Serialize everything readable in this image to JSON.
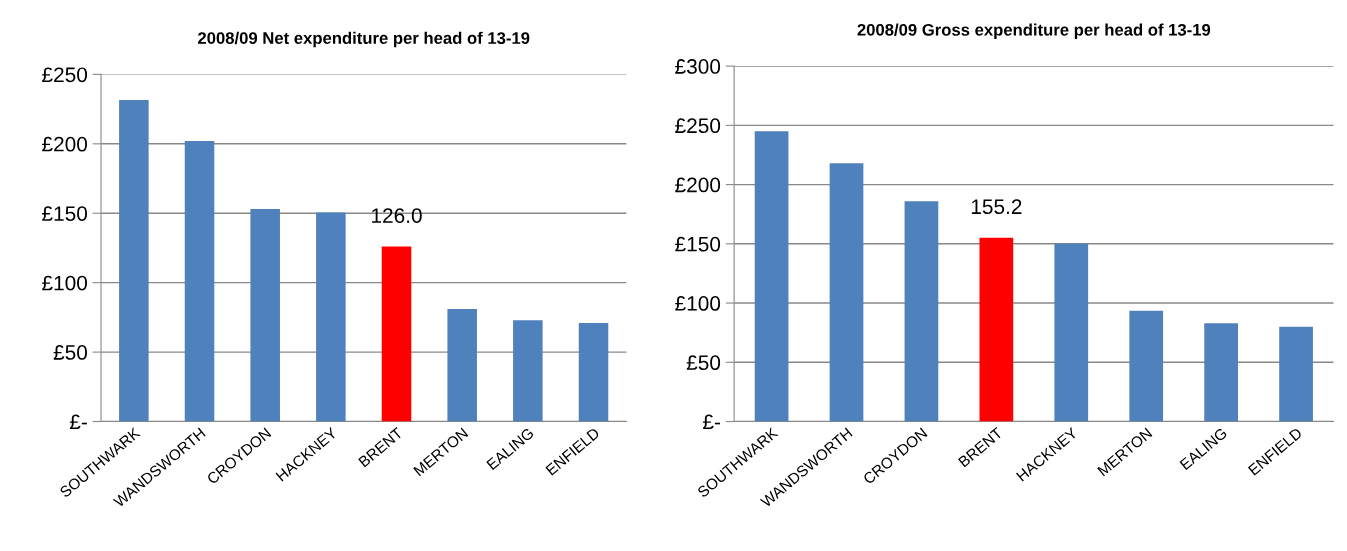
{
  "chart_data": [
    {
      "type": "bar",
      "title": "2008/09 Net expenditure per head of 13-19",
      "categories": [
        "SOUTHWARK",
        "WANDSWORTH",
        "CROYDON",
        "HACKNEY",
        "BRENT",
        "MERTON",
        "EALING",
        "ENFIELD"
      ],
      "values": [
        231.5,
        202,
        153,
        150.5,
        126.0,
        81,
        73,
        71
      ],
      "colors": [
        "#4f81bd",
        "#4f81bd",
        "#4f81bd",
        "#4f81bd",
        "#ff0000",
        "#4f81bd",
        "#4f81bd",
        "#4f81bd"
      ],
      "value_labels": [
        null,
        null,
        null,
        null,
        "126.0",
        null,
        null,
        null
      ],
      "ylim": [
        0,
        250
      ],
      "yticks": [
        {
          "value": 0,
          "label": "£-"
        },
        {
          "value": 50,
          "label": "£50"
        },
        {
          "value": 100,
          "label": "£100"
        },
        {
          "value": 150,
          "label": "£150"
        },
        {
          "value": 200,
          "label": "£200"
        },
        {
          "value": 250,
          "label": "£250"
        }
      ],
      "grid": "y"
    },
    {
      "type": "bar",
      "title": "2008/09 Gross expenditure per head of 13-19",
      "categories": [
        "SOUTHWARK",
        "WANDSWORTH",
        "CROYDON",
        "BRENT",
        "HACKNEY",
        "MERTON",
        "EALING",
        "ENFIELD"
      ],
      "values": [
        245,
        218,
        186,
        155.2,
        150,
        93.5,
        83,
        80
      ],
      "colors": [
        "#4f81bd",
        "#4f81bd",
        "#4f81bd",
        "#ff0000",
        "#4f81bd",
        "#4f81bd",
        "#4f81bd",
        "#4f81bd"
      ],
      "value_labels": [
        null,
        null,
        null,
        "155.2",
        null,
        null,
        null,
        null
      ],
      "ylim": [
        0,
        300
      ],
      "yticks": [
        {
          "value": 0,
          "label": "£-"
        },
        {
          "value": 50,
          "label": "£50"
        },
        {
          "value": 100,
          "label": "£100"
        },
        {
          "value": 150,
          "label": "£150"
        },
        {
          "value": 200,
          "label": "£200"
        },
        {
          "value": 250,
          "label": "£250"
        },
        {
          "value": 300,
          "label": "£300"
        }
      ],
      "grid": "y"
    }
  ]
}
